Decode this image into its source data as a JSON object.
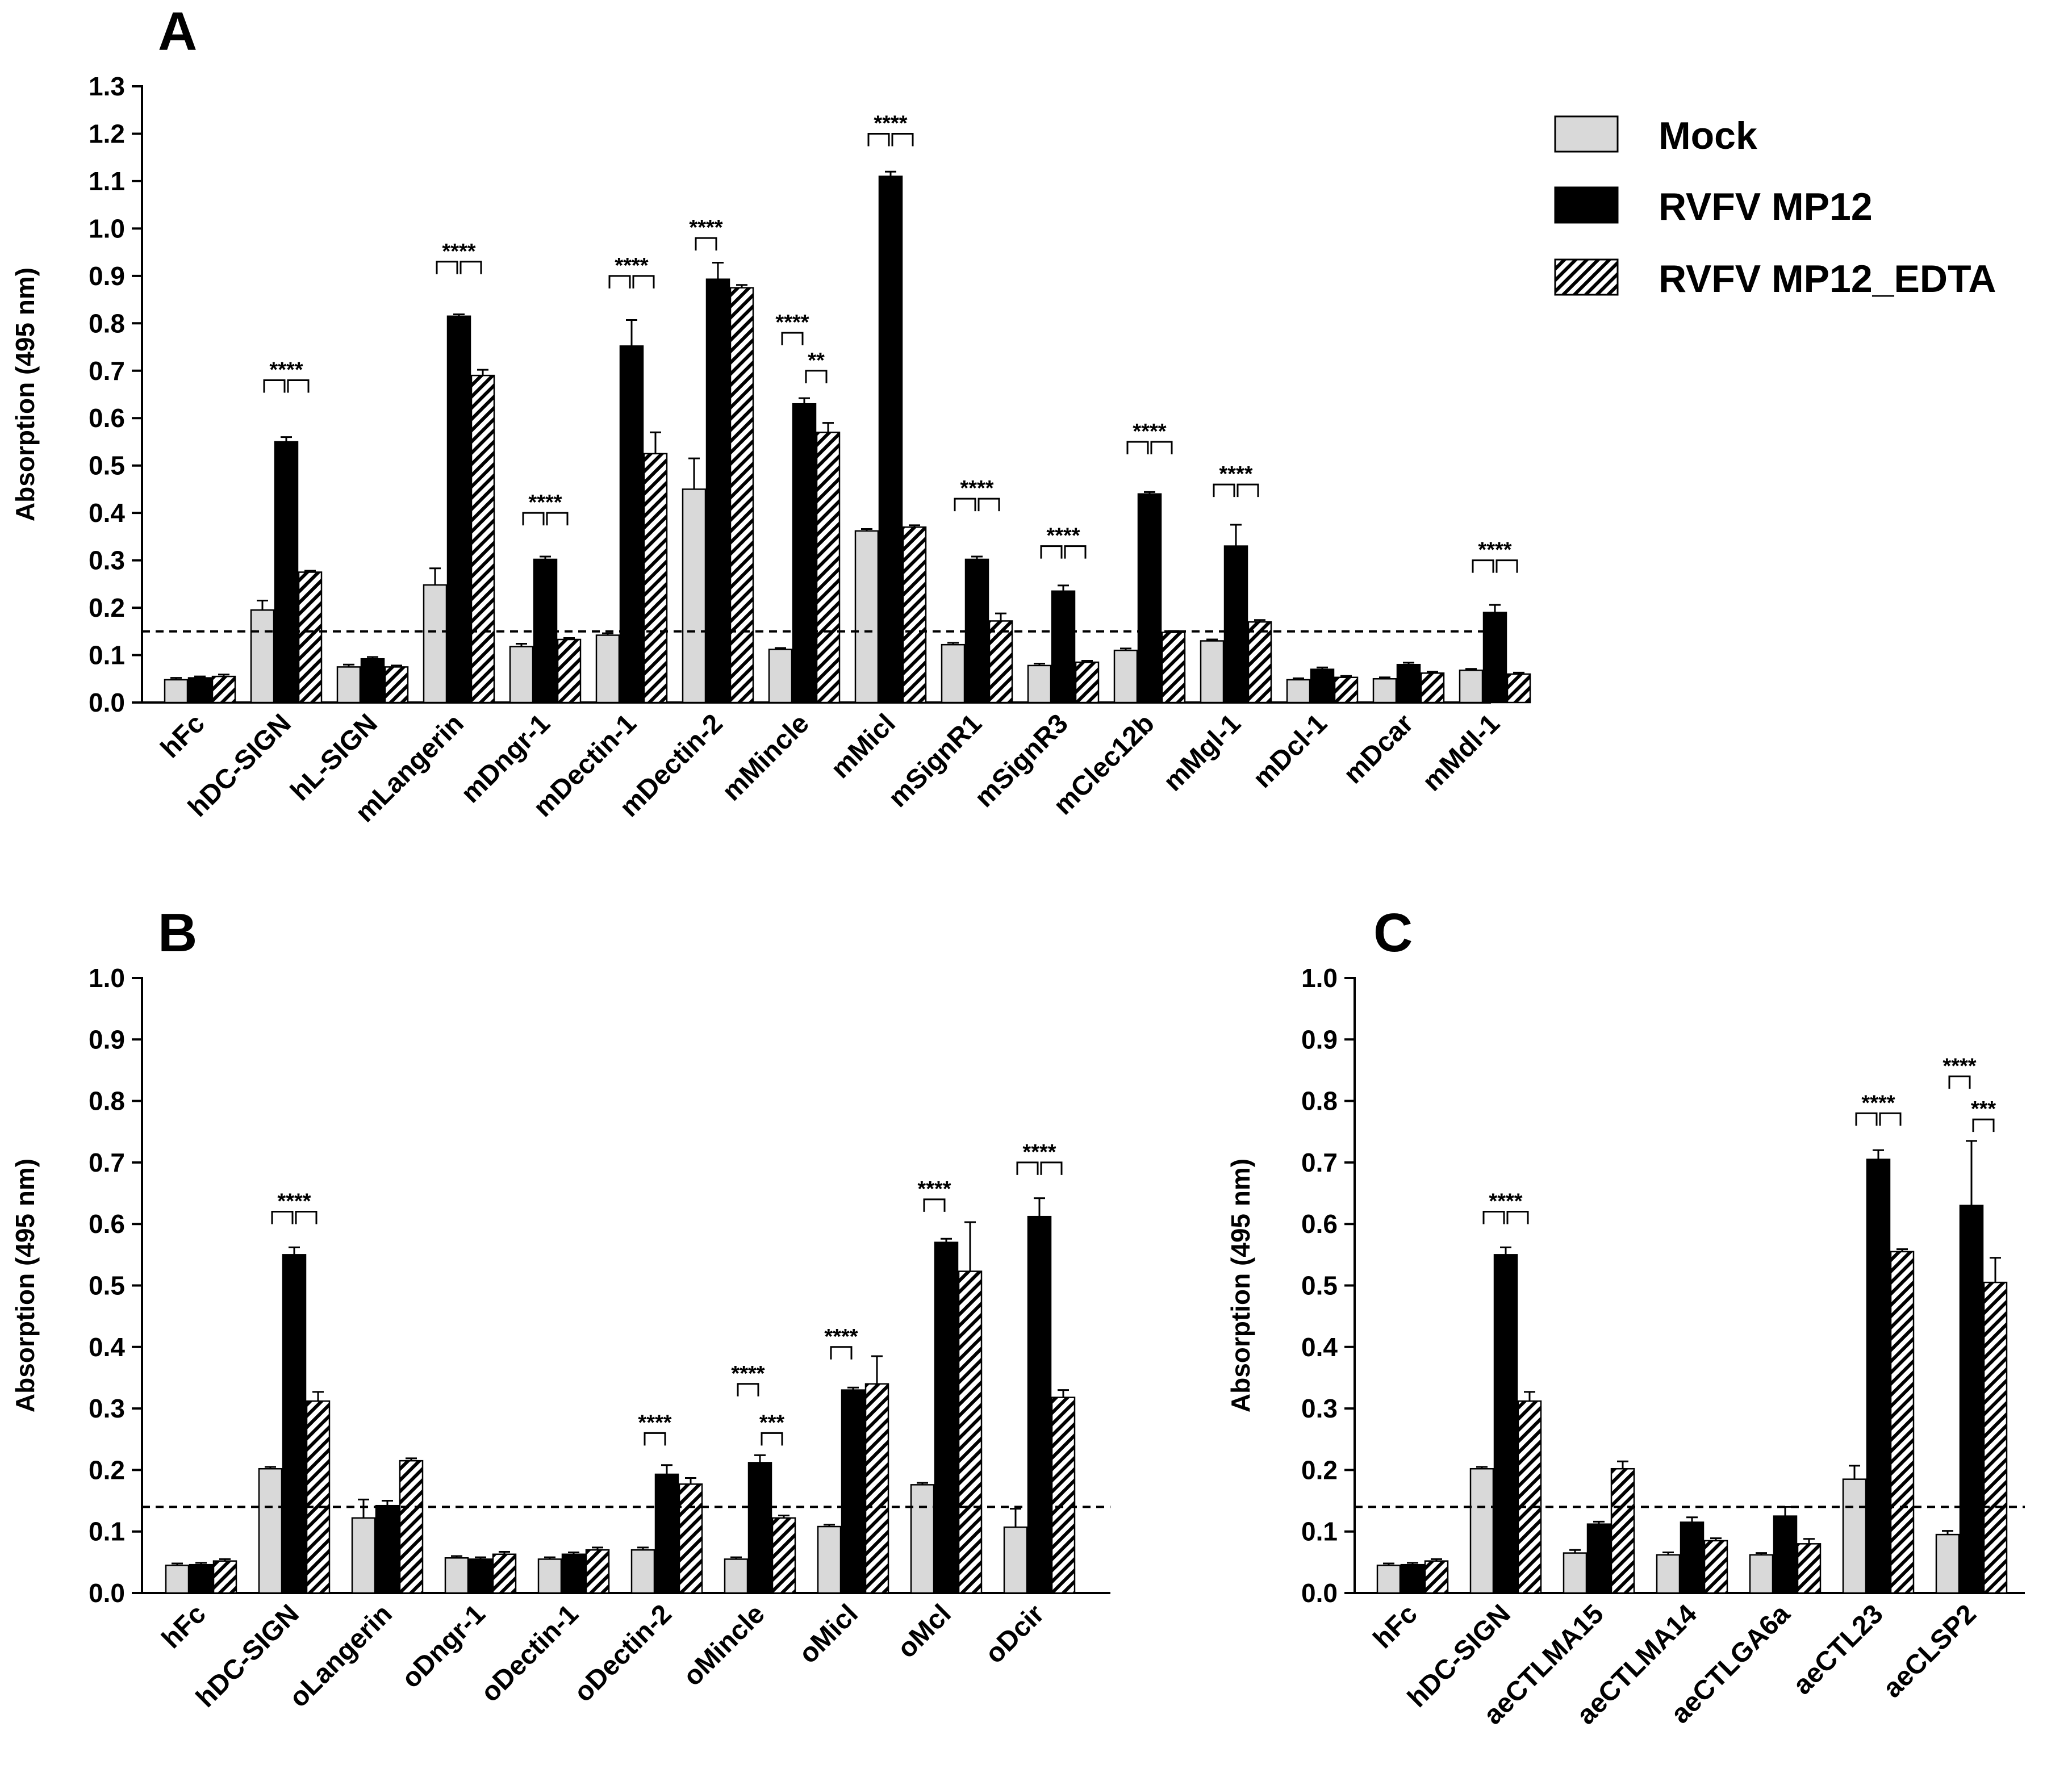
{
  "chart_data": [
    {
      "panel": "A",
      "type": "bar",
      "ylabel": "Absorption (495 nm)",
      "ylim": [
        0,
        1.3
      ],
      "ytick_step": 0.1,
      "yticks": [
        "0.0",
        "0.1",
        "0.2",
        "0.3",
        "0.4",
        "0.5",
        "0.6",
        "0.7",
        "0.8",
        "0.9",
        "1.0",
        "1.1",
        "1.2",
        "1.3"
      ],
      "threshold": 0.15,
      "categories": [
        "hFc",
        "hDC-SIGN",
        "hL-SIGN",
        "mLangerin",
        "mDngr-1",
        "mDectin-1",
        "mDectin-2",
        "mMincle",
        "mMicl",
        "mSignR1",
        "mSignR3",
        "mClec12b",
        "mMgl-1",
        "mDcl-1",
        "mDcar",
        "mMdl-1"
      ],
      "series": [
        {
          "name": "Mock",
          "values": [
            0.048,
            0.195,
            0.075,
            0.248,
            0.118,
            0.142,
            0.45,
            0.112,
            0.362,
            0.122,
            0.078,
            0.11,
            0.13,
            0.048,
            0.05,
            0.068
          ],
          "errors": [
            0.004,
            0.02,
            0.005,
            0.035,
            0.006,
            0.004,
            0.065,
            0.003,
            0.004,
            0.004,
            0.004,
            0.004,
            0.003,
            0.003,
            0.003,
            0.003
          ]
        },
        {
          "name": "RVFV MP12",
          "values": [
            0.052,
            0.55,
            0.092,
            0.815,
            0.302,
            0.752,
            0.893,
            0.63,
            1.11,
            0.302,
            0.235,
            0.44,
            0.33,
            0.07,
            0.08,
            0.19
          ],
          "errors": [
            0.003,
            0.01,
            0.004,
            0.004,
            0.006,
            0.055,
            0.035,
            0.012,
            0.01,
            0.006,
            0.012,
            0.004,
            0.045,
            0.004,
            0.004,
            0.016
          ]
        },
        {
          "name": "RVFV MP12_EDTA",
          "values": [
            0.055,
            0.275,
            0.075,
            0.69,
            0.133,
            0.525,
            0.875,
            0.57,
            0.37,
            0.172,
            0.085,
            0.148,
            0.17,
            0.053,
            0.062,
            0.06
          ],
          "errors": [
            0.004,
            0.003,
            0.003,
            0.012,
            0.003,
            0.045,
            0.006,
            0.02,
            0.004,
            0.016,
            0.003,
            0.003,
            0.004,
            0.003,
            0.003,
            0.003
          ]
        }
      ],
      "annotations": [
        {
          "category": "hDC-SIGN",
          "label": "****",
          "style": "double",
          "y": 0.68
        },
        {
          "category": "mLangerin",
          "label": "****",
          "style": "double",
          "y": 0.93
        },
        {
          "category": "mDngr-1",
          "label": "****",
          "style": "double",
          "y": 0.4
        },
        {
          "category": "mDectin-1",
          "label": "****",
          "style": "double",
          "y": 0.9
        },
        {
          "category": "mDectin-2",
          "label": "****",
          "style": "mock-only",
          "y": 0.98
        },
        {
          "category": "mMincle",
          "label": "****",
          "style": "mock-only",
          "y": 0.78
        },
        {
          "category": "mMincle",
          "label": "**",
          "style": "edta-only",
          "y": 0.7
        },
        {
          "category": "mMicl",
          "label": "****",
          "style": "double",
          "y": 1.2
        },
        {
          "category": "mSignR1",
          "label": "****",
          "style": "double",
          "y": 0.43
        },
        {
          "category": "mSignR3",
          "label": "****",
          "style": "double",
          "y": 0.33
        },
        {
          "category": "mClec12b",
          "label": "****",
          "style": "double",
          "y": 0.55
        },
        {
          "category": "mMgl-1",
          "label": "****",
          "style": "double",
          "y": 0.46
        },
        {
          "category": "mMdl-1",
          "label": "****",
          "style": "double",
          "y": 0.3
        }
      ]
    },
    {
      "panel": "B",
      "type": "bar",
      "ylabel": "Absorption (495 nm)",
      "ylim": [
        0,
        1.0
      ],
      "ytick_step": 0.1,
      "yticks": [
        "0.0",
        "0.1",
        "0.2",
        "0.3",
        "0.4",
        "0.5",
        "0.6",
        "0.7",
        "0.8",
        "0.9",
        "1.0"
      ],
      "threshold": 0.14,
      "categories": [
        "hFc",
        "hDC-SIGN",
        "oLangerin",
        "oDngr-1",
        "oDectin-1",
        "oDectin-2",
        "oMincle",
        "oMicl",
        "oMcl",
        "oDcir"
      ],
      "series": [
        {
          "name": "Mock",
          "values": [
            0.045,
            0.202,
            0.122,
            0.057,
            0.055,
            0.07,
            0.055,
            0.108,
            0.176,
            0.107
          ],
          "errors": [
            0.003,
            0.003,
            0.03,
            0.003,
            0.003,
            0.004,
            0.003,
            0.003,
            0.003,
            0.03
          ]
        },
        {
          "name": "RVFV MP12",
          "values": [
            0.046,
            0.55,
            0.142,
            0.055,
            0.063,
            0.193,
            0.212,
            0.33,
            0.57,
            0.612
          ],
          "errors": [
            0.003,
            0.012,
            0.008,
            0.003,
            0.003,
            0.015,
            0.012,
            0.004,
            0.006,
            0.03
          ]
        },
        {
          "name": "RVFV MP12_EDTA",
          "values": [
            0.052,
            0.312,
            0.215,
            0.063,
            0.07,
            0.177,
            0.122,
            0.34,
            0.523,
            0.318
          ],
          "errors": [
            0.003,
            0.015,
            0.004,
            0.004,
            0.004,
            0.01,
            0.004,
            0.045,
            0.08,
            0.012
          ]
        }
      ],
      "annotations": [
        {
          "category": "hDC-SIGN",
          "label": "****",
          "style": "double",
          "y": 0.62
        },
        {
          "category": "oDectin-2",
          "label": "****",
          "style": "mock-only",
          "y": 0.26
        },
        {
          "category": "oMincle",
          "label": "****",
          "style": "mock-only",
          "y": 0.34
        },
        {
          "category": "oMincle",
          "label": "***",
          "style": "edta-only",
          "y": 0.26
        },
        {
          "category": "oMicl",
          "label": "****",
          "style": "mock-only",
          "y": 0.4
        },
        {
          "category": "oMcl",
          "label": "****",
          "style": "mock-only",
          "y": 0.64
        },
        {
          "category": "oDcir",
          "label": "****",
          "style": "double",
          "y": 0.7
        }
      ]
    },
    {
      "panel": "C",
      "type": "bar",
      "ylabel": "Absorption (495 nm)",
      "ylim": [
        0,
        1.0
      ],
      "ytick_step": 0.1,
      "yticks": [
        "0.0",
        "0.1",
        "0.2",
        "0.3",
        "0.4",
        "0.5",
        "0.6",
        "0.7",
        "0.8",
        "0.9",
        "1.0"
      ],
      "threshold": 0.14,
      "categories": [
        "hFc",
        "hDC-SIGN",
        "aeCTLMA15",
        "aeCTLMA14",
        "aeCTLGA6a",
        "aeCTL23",
        "aeCLSP2"
      ],
      "series": [
        {
          "name": "Mock",
          "values": [
            0.045,
            0.202,
            0.065,
            0.062,
            0.062,
            0.185,
            0.095
          ],
          "errors": [
            0.003,
            0.003,
            0.005,
            0.004,
            0.003,
            0.022,
            0.006
          ]
        },
        {
          "name": "RVFV MP12",
          "values": [
            0.046,
            0.55,
            0.112,
            0.115,
            0.125,
            0.705,
            0.63
          ],
          "errors": [
            0.003,
            0.012,
            0.004,
            0.008,
            0.015,
            0.015,
            0.105
          ]
        },
        {
          "name": "RVFV MP12_EDTA",
          "values": [
            0.052,
            0.312,
            0.202,
            0.085,
            0.08,
            0.555,
            0.505
          ],
          "errors": [
            0.003,
            0.015,
            0.012,
            0.004,
            0.008,
            0.004,
            0.04
          ]
        }
      ],
      "annotations": [
        {
          "category": "hDC-SIGN",
          "label": "****",
          "style": "double",
          "y": 0.62
        },
        {
          "category": "aeCTL23",
          "label": "****",
          "style": "double",
          "y": 0.78
        },
        {
          "category": "aeCLSP2",
          "label": "****",
          "style": "mock-only",
          "y": 0.84
        },
        {
          "category": "aeCLSP2",
          "label": "***",
          "style": "edta-only",
          "y": 0.77
        }
      ]
    }
  ],
  "legend": {
    "entries": [
      {
        "label": "Mock",
        "fill": "#d9d9d9"
      },
      {
        "label": "RVFV MP12",
        "fill": "#000000"
      },
      {
        "label": "RVFV MP12_EDTA",
        "fill": "hatch"
      }
    ]
  }
}
